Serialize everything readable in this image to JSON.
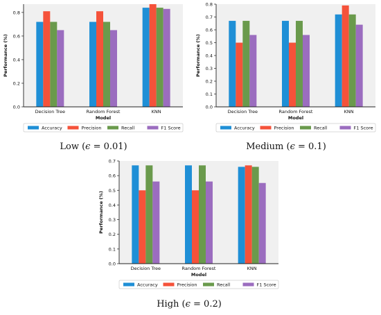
{
  "colors": {
    "accuracy": "#1f8fd6",
    "precision": "#f5523a",
    "recall": "#6a9a4c",
    "f1": "#9b6dbf",
    "plot_bg": "#f0f0f0"
  },
  "chart_data": [
    {
      "type": "bar",
      "caption": {
        "prefix": "Low (",
        "symbol": "ϵ",
        "suffix": " = 0.01)"
      },
      "categories": [
        "Decision Tree",
        "Random Forest",
        "KNN"
      ],
      "series": [
        {
          "name": "Accuracy",
          "values": [
            0.72,
            0.72,
            0.84
          ]
        },
        {
          "name": "Precision",
          "values": [
            0.81,
            0.81,
            0.87
          ]
        },
        {
          "name": "Recall",
          "values": [
            0.72,
            0.72,
            0.84
          ]
        },
        {
          "name": "F1 Score",
          "values": [
            0.65,
            0.65,
            0.83
          ]
        }
      ],
      "xlabel": "Model",
      "ylabel": "Performance (%)",
      "ylim": [
        0,
        0.87
      ],
      "yticks": [
        "0.0",
        "0.2",
        "0.4",
        "0.6",
        "0.8"
      ],
      "ytick_values": [
        0,
        0.2,
        0.4,
        0.6,
        0.8
      ],
      "legend": "below",
      "grid": false
    },
    {
      "type": "bar",
      "caption": {
        "prefix": "Medium (",
        "symbol": "ϵ",
        "suffix": " = 0.1)"
      },
      "categories": [
        "Decision Tree",
        "Random Forest",
        "KNN"
      ],
      "series": [
        {
          "name": "Accuracy",
          "values": [
            0.67,
            0.67,
            0.72
          ]
        },
        {
          "name": "Precision",
          "values": [
            0.5,
            0.5,
            0.79
          ]
        },
        {
          "name": "Recall",
          "values": [
            0.67,
            0.67,
            0.72
          ]
        },
        {
          "name": "F1 Score",
          "values": [
            0.56,
            0.56,
            0.64
          ]
        }
      ],
      "xlabel": "Model",
      "ylabel": "Performance (%)",
      "ylim": [
        0,
        0.8
      ],
      "yticks": [
        "0.0",
        "0.1",
        "0.2",
        "0.3",
        "0.4",
        "0.5",
        "0.6",
        "0.7",
        "0.8"
      ],
      "ytick_values": [
        0,
        0.1,
        0.2,
        0.3,
        0.4,
        0.5,
        0.6,
        0.7,
        0.8
      ],
      "legend": "below",
      "grid": false
    },
    {
      "type": "bar",
      "caption": {
        "prefix": "High (",
        "symbol": "ϵ",
        "suffix": " = 0.2)"
      },
      "categories": [
        "Decision Tree",
        "Random Forest",
        "KNN"
      ],
      "series": [
        {
          "name": "Accuracy",
          "values": [
            0.67,
            0.67,
            0.66
          ]
        },
        {
          "name": "Precision",
          "values": [
            0.5,
            0.5,
            0.67
          ]
        },
        {
          "name": "Recall",
          "values": [
            0.67,
            0.67,
            0.66
          ]
        },
        {
          "name": "F1 Score",
          "values": [
            0.56,
            0.56,
            0.55
          ]
        }
      ],
      "xlabel": "Model",
      "ylabel": "Performance (%)",
      "ylim": [
        0,
        0.7
      ],
      "yticks": [
        "0.0",
        "0.1",
        "0.2",
        "0.3",
        "0.4",
        "0.5",
        "0.6",
        "0.7"
      ],
      "ytick_values": [
        0,
        0.1,
        0.2,
        0.3,
        0.4,
        0.5,
        0.6,
        0.7
      ],
      "legend": "below",
      "grid": false
    }
  ]
}
